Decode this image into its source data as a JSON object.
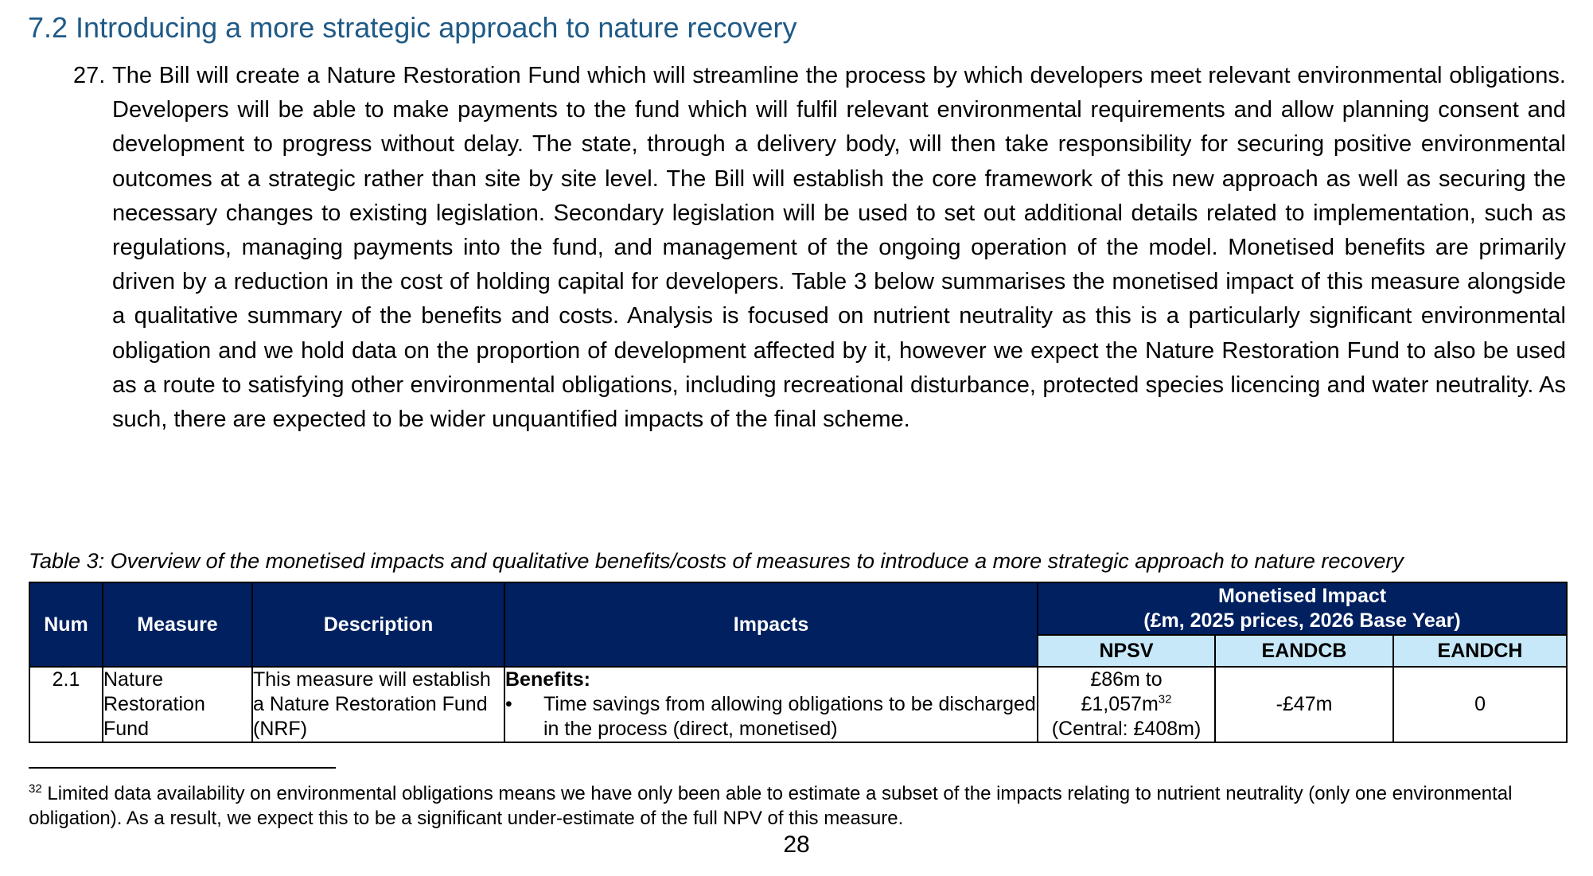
{
  "section": {
    "heading": "7.2 Introducing a more strategic approach to nature recovery"
  },
  "paragraph": {
    "number": "27.",
    "text": "The Bill will create a Nature Restoration Fund which will streamline the process by which developers meet relevant environmental obligations. Developers will be able to make payments to the fund which will fulfil relevant environmental requirements and allow planning consent and development to progress without delay. The state, through a delivery body, will then take responsibility for securing positive environmental outcomes at a strategic rather than site by site level. The Bill will establish the core framework of this new approach as well as securing the necessary changes to existing legislation. Secondary legislation will be used to set out additional details related to implementation, such as regulations, managing payments into the fund, and management of the ongoing operation of the model. Monetised benefits are primarily driven by a reduction in the cost of holding capital for developers. Table 3 below summarises the monetised impact of this measure alongside a qualitative summary of the benefits and costs. Analysis is focused on nutrient neutrality as this is a particularly significant environmental obligation and we hold data on the proportion of development affected by it, however we expect the Nature Restoration Fund to also be used as a route to satisfying other environmental obligations, including recreational disturbance, protected species licencing and water neutrality. As such, there are expected to be wider unquantified impacts of the final scheme."
  },
  "table": {
    "caption": "Table 3: Overview of the monetised impacts and qualitative benefits/costs of measures to introduce a more strategic approach to nature recovery",
    "headers": {
      "num": "Num",
      "measure": "Measure",
      "description": "Description",
      "impacts": "Impacts",
      "monetised_line1": "Monetised Impact",
      "monetised_line2": "(£m, 2025 prices, 2026 Base Year)",
      "npsv": "NPSV",
      "eandcb": "EANDCB",
      "eandch": "EANDCH"
    },
    "rows": [
      {
        "num": "2.1",
        "measure": "Nature Restoration Fund",
        "description": "This measure will establish a Nature Restoration Fund (NRF)",
        "impacts_label": "Benefits:",
        "impacts_bullet_symbol": "•",
        "impacts_bullet": "Time savings from allowing obligations to be discharged in the process (direct, monetised)",
        "npsv_line1": "£86m to",
        "npsv_line2": "£1,057m",
        "npsv_footnote_ref": "32",
        "npsv_line3": "(Central: £408m)",
        "eandcb": "-£47m",
        "eandch": "0"
      }
    ]
  },
  "footnote": {
    "marker": "32",
    "text": " Limited data availability on environmental obligations means we have only been able to estimate a subset of the impacts relating to nutrient neutrality (only one environmental obligation). As a result, we expect this to be a significant under-estimate of the full NPV of this measure."
  },
  "page_number": "28",
  "colors": {
    "heading": "#1f5a87",
    "table_header_bg": "#002060",
    "table_subheader_bg": "#c6e8f9"
  }
}
